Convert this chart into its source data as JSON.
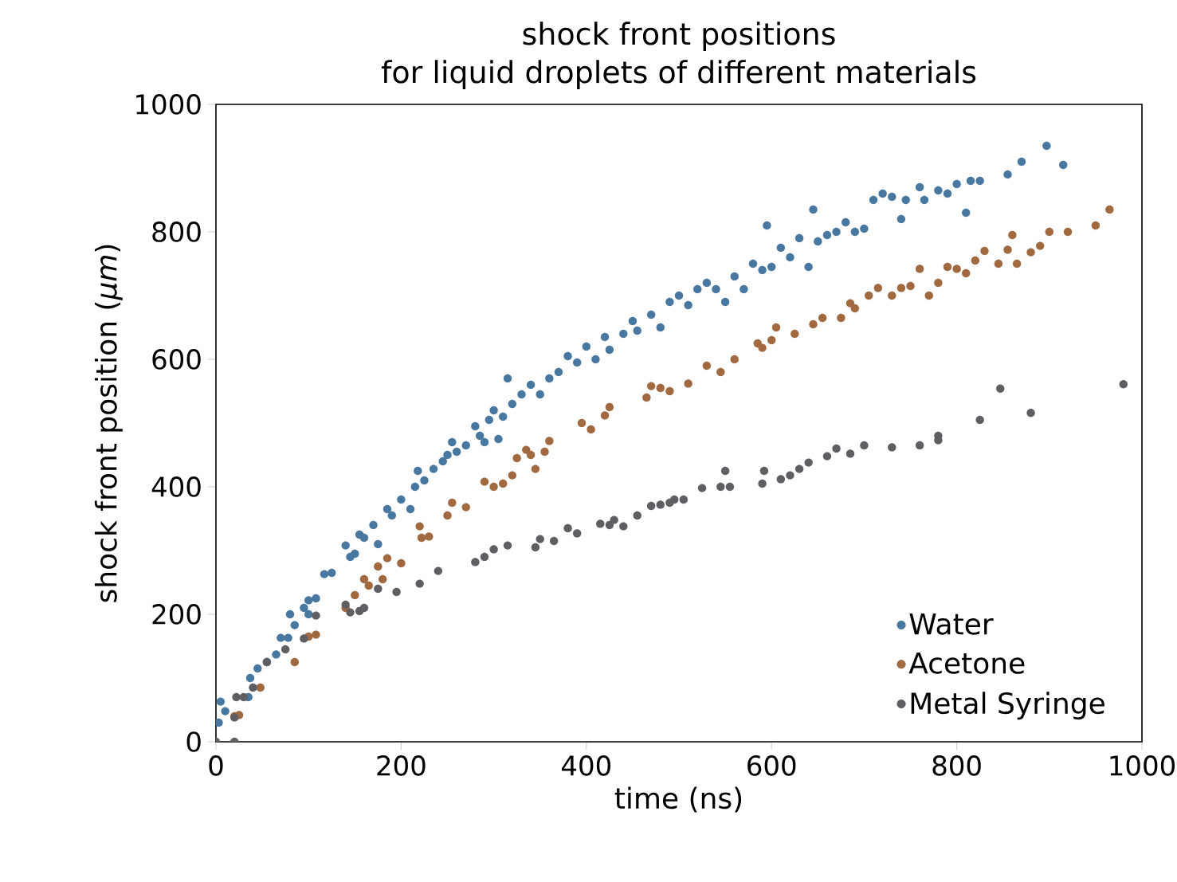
{
  "chart_data": {
    "type": "scatter",
    "title": "shock front positions",
    "subtitle": "for liquid droplets of different materials",
    "xlabel": "time (ns)",
    "ylabel": "shock front position (*μm*)",
    "xlim": [
      0,
      1000
    ],
    "ylim": [
      0,
      1000
    ],
    "xticks": [
      0,
      200,
      400,
      600,
      800,
      1000
    ],
    "yticks": [
      0,
      200,
      400,
      600,
      800,
      1000
    ],
    "legend": "bottom right",
    "marker": "circle",
    "series": [
      {
        "name": "Water",
        "color": "#4878a0",
        "x": [
          3,
          5,
          10,
          35,
          37,
          45,
          55,
          65,
          70,
          78,
          80,
          85,
          95,
          100,
          100,
          108,
          117,
          125,
          140,
          145,
          150,
          155,
          160,
          170,
          175,
          185,
          190,
          200,
          210,
          215,
          218,
          225,
          235,
          245,
          250,
          255,
          260,
          270,
          280,
          285,
          290,
          295,
          300,
          305,
          310,
          315,
          320,
          330,
          340,
          350,
          360,
          370,
          380,
          390,
          400,
          410,
          420,
          425,
          440,
          450,
          455,
          470,
          480,
          490,
          500,
          510,
          520,
          530,
          540,
          550,
          560,
          570,
          580,
          590,
          595,
          600,
          610,
          620,
          630,
          640,
          645,
          650,
          660,
          670,
          680,
          690,
          700,
          710,
          720,
          730,
          740,
          745,
          760,
          765,
          780,
          790,
          800,
          810,
          815,
          825,
          855,
          870,
          897,
          915
        ],
        "values": [
          30,
          63,
          48,
          70,
          100,
          115,
          125,
          137,
          163,
          163,
          200,
          183,
          210,
          222,
          200,
          225,
          263,
          265,
          308,
          290,
          295,
          325,
          320,
          340,
          310,
          365,
          355,
          380,
          365,
          400,
          425,
          410,
          428,
          440,
          450,
          470,
          455,
          465,
          495,
          480,
          470,
          505,
          520,
          475,
          510,
          570,
          530,
          545,
          560,
          545,
          570,
          580,
          605,
          595,
          620,
          600,
          635,
          615,
          640,
          660,
          645,
          670,
          650,
          690,
          700,
          685,
          710,
          720,
          710,
          690,
          730,
          710,
          750,
          740,
          810,
          745,
          775,
          760,
          790,
          745,
          835,
          785,
          795,
          800,
          815,
          800,
          805,
          850,
          860,
          855,
          820,
          850,
          870,
          850,
          865,
          860,
          875,
          830,
          880,
          880,
          890,
          910,
          935,
          905
        ]
      },
      {
        "name": "Acetone",
        "color": "#a0693f",
        "x": [
          20,
          25,
          48,
          85,
          100,
          108,
          140,
          150,
          160,
          165,
          175,
          180,
          185,
          200,
          220,
          222,
          230,
          250,
          255,
          270,
          290,
          300,
          310,
          320,
          325,
          335,
          340,
          345,
          355,
          360,
          395,
          405,
          420,
          425,
          465,
          470,
          480,
          490,
          510,
          530,
          545,
          560,
          585,
          590,
          600,
          605,
          625,
          645,
          655,
          675,
          685,
          690,
          705,
          715,
          730,
          740,
          750,
          760,
          770,
          780,
          790,
          800,
          810,
          820,
          830,
          845,
          855,
          860,
          865,
          880,
          890,
          900,
          920,
          950,
          965
        ],
        "values": [
          40,
          42,
          85,
          125,
          165,
          168,
          210,
          230,
          255,
          245,
          275,
          255,
          288,
          280,
          338,
          320,
          322,
          355,
          375,
          368,
          408,
          400,
          405,
          418,
          445,
          458,
          450,
          428,
          455,
          472,
          500,
          490,
          512,
          525,
          540,
          558,
          555,
          550,
          562,
          590,
          580,
          600,
          625,
          618,
          630,
          650,
          640,
          655,
          665,
          665,
          688,
          680,
          700,
          712,
          700,
          712,
          715,
          742,
          700,
          720,
          745,
          742,
          735,
          755,
          770,
          750,
          772,
          795,
          750,
          768,
          778,
          800,
          800,
          810,
          835
        ]
      },
      {
        "name": "Metal Syringe",
        "color": "#5f5f63",
        "x": [
          0,
          20,
          20,
          22,
          30,
          40,
          55,
          75,
          95,
          108,
          140,
          145,
          155,
          160,
          175,
          195,
          220,
          240,
          280,
          290,
          300,
          315,
          345,
          350,
          365,
          380,
          390,
          415,
          425,
          430,
          440,
          455,
          470,
          480,
          490,
          495,
          505,
          525,
          545,
          550,
          555,
          590,
          592,
          610,
          620,
          630,
          640,
          660,
          670,
          685,
          700,
          730,
          760,
          780,
          780,
          825,
          847,
          880,
          980
        ],
        "values": [
          0,
          0,
          38,
          70,
          70,
          85,
          125,
          145,
          162,
          198,
          215,
          203,
          205,
          210,
          240,
          235,
          248,
          268,
          282,
          290,
          302,
          308,
          305,
          318,
          315,
          335,
          327,
          342,
          340,
          348,
          338,
          355,
          370,
          372,
          375,
          380,
          380,
          398,
          400,
          425,
          400,
          405,
          425,
          412,
          418,
          428,
          438,
          448,
          460,
          452,
          465,
          462,
          465,
          473,
          480,
          505,
          554,
          516,
          561
        ]
      }
    ]
  }
}
